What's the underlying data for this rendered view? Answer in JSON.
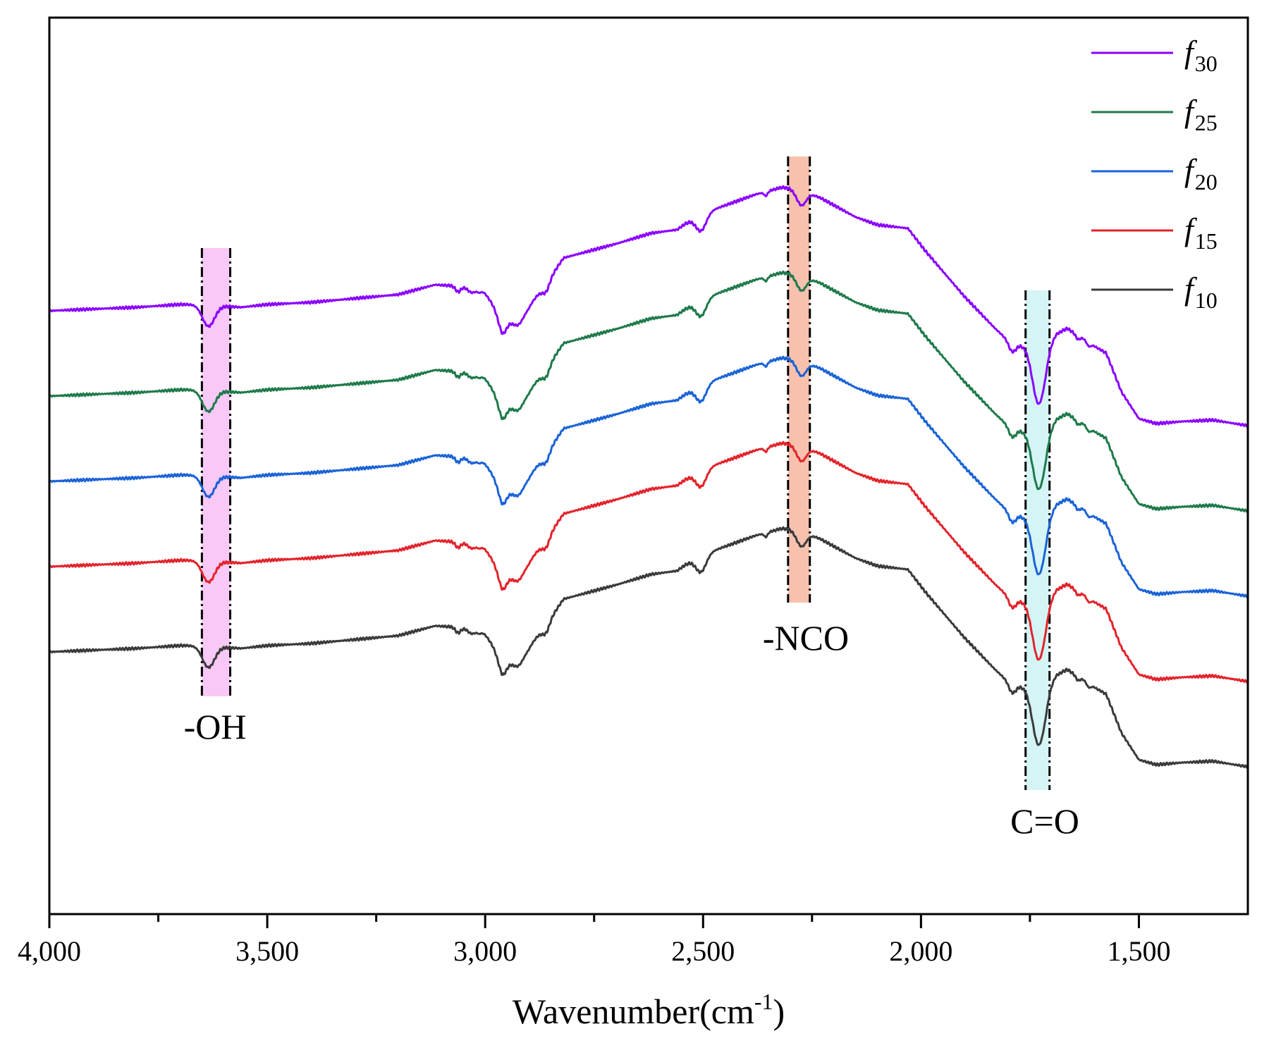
{
  "chart_data": {
    "type": "line",
    "title": "",
    "xlabel_main": "Wavenumber(cm",
    "xlabel_sup": "-1",
    "xlabel_close": ")",
    "ylabel": "",
    "xlim": [
      4000,
      1250
    ],
    "x_ticks": [
      4000,
      3500,
      3000,
      2500,
      2000,
      1500
    ],
    "x_tick_labels": [
      "4,000",
      "3,500",
      "3,000",
      "2,500",
      "2,000",
      "1,500"
    ],
    "x_minor_ticks": [
      3750,
      3250,
      2750,
      2250,
      1750
    ],
    "y_ticks_shown": false,
    "grid": false,
    "legend_position": "top-right",
    "series": [
      {
        "name": "f30",
        "base": "f",
        "sub": "30",
        "color": "#8b00ff",
        "offset": 4
      },
      {
        "name": "f25",
        "base": "f",
        "sub": "25",
        "color": "#1e7a4a",
        "offset": 3
      },
      {
        "name": "f20",
        "base": "f",
        "sub": "20",
        "color": "#1a63d6",
        "offset": 2
      },
      {
        "name": "f15",
        "base": "f",
        "sub": "15",
        "color": "#e3232b",
        "offset": 1
      },
      {
        "name": "f10",
        "base": "f",
        "sub": "10",
        "color": "#3a3a3a",
        "offset": 0
      }
    ],
    "annotations": [
      {
        "label": "-OH",
        "x_range": [
          3650,
          3585
        ],
        "fill": "#f8c8f6"
      },
      {
        "label": "-NCO",
        "x_range": [
          2305,
          2255
        ],
        "fill": "#f7c1ad"
      },
      {
        "label": "C=O",
        "x_range": [
          1760,
          1705
        ],
        "fill": "#d4f4f6"
      }
    ]
  }
}
